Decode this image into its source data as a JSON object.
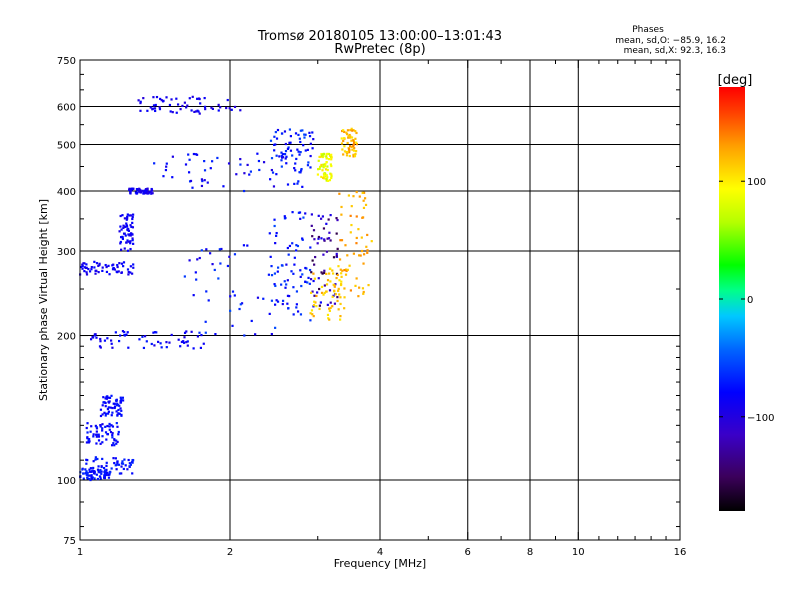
{
  "chart_data": {
    "type": "scatter",
    "title": "Tromsø 20180105 13:00:00–13:01:43",
    "subtitle": "RwPretec (8p)",
    "xlabel": "Frequency [MHz]",
    "ylabel": "Stationary phase Virtual Height [km]",
    "x_scale": "log",
    "y_scale": "log",
    "xlim": [
      1,
      16
    ],
    "ylim": [
      75,
      750
    ],
    "x_ticks": [
      1,
      2,
      4,
      6,
      8,
      10,
      16
    ],
    "x_tick_labels": [
      "1",
      "2",
      "4",
      "6",
      "8",
      "10",
      "16"
    ],
    "x_major_grid": [
      2,
      4,
      6,
      8,
      10
    ],
    "x_minor_ticks": [
      3,
      5,
      7,
      9,
      11,
      12,
      13,
      14,
      15
    ],
    "y_ticks": [
      75,
      100,
      200,
      300,
      400,
      500,
      600,
      750
    ],
    "y_tick_labels": [
      "75",
      "100",
      "200",
      "300",
      "400",
      "500",
      "600",
      "750"
    ],
    "y_major_grid": [
      100,
      200,
      300,
      400,
      500,
      600
    ],
    "y_minor_ticks": [
      80,
      90,
      110,
      120,
      130,
      140,
      150,
      160,
      170,
      180,
      190,
      250,
      350,
      450,
      550,
      650,
      700
    ],
    "grid": true,
    "annotation": {
      "title": "Phases",
      "line_o": "mean, sd,O: −85.9, 16.2",
      "line_x": "mean, sd,X:  92.3, 16.3"
    },
    "colorbar": {
      "label": "[deg]",
      "range": [
        -180,
        180
      ],
      "tick_values": [
        100,
        0,
        -100
      ],
      "tick_labels": [
        "100",
        "0",
        "−100"
      ],
      "colormap": "rainbow"
    },
    "series": [
      {
        "x_range": [
          1.0,
          1.15
        ],
        "y_range": [
          100,
          106
        ],
        "phase": [
          -105,
          -85
        ]
      },
      {
        "x_range": [
          1.0,
          1.28
        ],
        "y_range": [
          103,
          112
        ],
        "phase": [
          -110,
          -80
        ]
      },
      {
        "x_range": [
          1.03,
          1.2
        ],
        "y_range": [
          118,
          132
        ],
        "phase": [
          -110,
          -85
        ]
      },
      {
        "x_range": [
          1.1,
          1.22
        ],
        "y_range": [
          136,
          150
        ],
        "phase": [
          -110,
          -90
        ]
      },
      {
        "x_range": [
          1.0,
          1.3
        ],
        "y_range": [
          268,
          285
        ],
        "phase": [
          -115,
          -95
        ]
      },
      {
        "x_range": [
          1.2,
          1.28
        ],
        "y_range": [
          300,
          360
        ],
        "phase": [
          -115,
          -95
        ]
      },
      {
        "x_range": [
          1.05,
          1.8
        ],
        "y_range": [
          188,
          205
        ],
        "phase": [
          -115,
          -90
        ]
      },
      {
        "x_range": [
          1.6,
          2.9
        ],
        "y_range": [
          200,
          310
        ],
        "phase": [
          -115,
          -70
        ]
      },
      {
        "x_range": [
          2.4,
          2.9
        ],
        "y_range": [
          220,
          370
        ],
        "phase": [
          -110,
          -70
        ]
      },
      {
        "x_range": [
          2.9,
          3.3
        ],
        "y_range": [
          230,
          360
        ],
        "phase": [
          -160,
          -100
        ]
      },
      {
        "x_range": [
          2.9,
          3.4
        ],
        "y_range": [
          215,
          280
        ],
        "phase": [
          100,
          130
        ]
      },
      {
        "x_range": [
          3.3,
          3.85
        ],
        "y_range": [
          240,
          400
        ],
        "phase": [
          110,
          140
        ]
      },
      {
        "x_range": [
          1.25,
          1.4
        ],
        "y_range": [
          395,
          405
        ],
        "phase": [
          -120,
          -100
        ]
      },
      {
        "x_range": [
          1.4,
          2.8
        ],
        "y_range": [
          400,
          480
        ],
        "phase": [
          -120,
          -80
        ]
      },
      {
        "x_range": [
          2.4,
          2.95
        ],
        "y_range": [
          440,
          540
        ],
        "phase": [
          -110,
          -70
        ]
      },
      {
        "x_range": [
          3.0,
          3.2
        ],
        "y_range": [
          420,
          480
        ],
        "phase": [
          70,
          110
        ]
      },
      {
        "x_range": [
          3.35,
          3.6
        ],
        "y_range": [
          470,
          540
        ],
        "phase": [
          100,
          140
        ]
      },
      {
        "x_range": [
          1.3,
          2.1
        ],
        "y_range": [
          580,
          630
        ],
        "phase": [
          -120,
          -100
        ]
      }
    ]
  }
}
